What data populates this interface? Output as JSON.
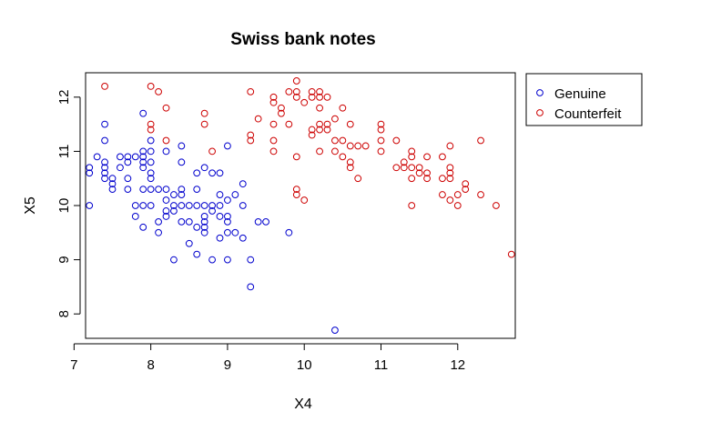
{
  "chart_data": {
    "type": "scatter",
    "title": "Swiss bank notes",
    "xlabel": "X4",
    "ylabel": "X5",
    "xlim": [
      7.15,
      12.75
    ],
    "ylim": [
      7.55,
      12.45
    ],
    "xticks": [
      7,
      8,
      9,
      10,
      11,
      12
    ],
    "yticks": [
      8,
      9,
      10,
      11,
      12
    ],
    "grid": false,
    "legend_position": "top-right (outside plot)",
    "series": [
      {
        "name": "Genuine",
        "color": "#0000cd",
        "marker": "open-circle",
        "points": [
          [
            7.2,
            10.7
          ],
          [
            7.2,
            10.6
          ],
          [
            7.2,
            10.0
          ],
          [
            7.3,
            10.9
          ],
          [
            7.4,
            11.5
          ],
          [
            7.4,
            11.2
          ],
          [
            7.4,
            10.8
          ],
          [
            7.4,
            10.7
          ],
          [
            7.4,
            10.6
          ],
          [
            7.4,
            10.5
          ],
          [
            7.5,
            10.5
          ],
          [
            7.5,
            10.4
          ],
          [
            7.5,
            10.3
          ],
          [
            7.6,
            10.9
          ],
          [
            7.6,
            10.7
          ],
          [
            7.7,
            10.9
          ],
          [
            7.7,
            10.8
          ],
          [
            7.7,
            10.5
          ],
          [
            7.7,
            10.3
          ],
          [
            7.8,
            10.9
          ],
          [
            7.8,
            10.0
          ],
          [
            7.8,
            9.8
          ],
          [
            7.9,
            11.7
          ],
          [
            7.9,
            11.0
          ],
          [
            7.9,
            10.9
          ],
          [
            7.9,
            10.8
          ],
          [
            7.9,
            10.7
          ],
          [
            7.9,
            10.3
          ],
          [
            7.9,
            10.0
          ],
          [
            7.9,
            9.6
          ],
          [
            8.0,
            11.2
          ],
          [
            8.0,
            11.0
          ],
          [
            8.0,
            10.8
          ],
          [
            8.0,
            10.6
          ],
          [
            8.0,
            10.5
          ],
          [
            8.0,
            10.3
          ],
          [
            8.0,
            10.0
          ],
          [
            8.1,
            10.3
          ],
          [
            8.1,
            9.7
          ],
          [
            8.1,
            9.5
          ],
          [
            8.2,
            11.0
          ],
          [
            8.2,
            10.3
          ],
          [
            8.2,
            10.1
          ],
          [
            8.2,
            9.9
          ],
          [
            8.2,
            9.8
          ],
          [
            8.3,
            10.2
          ],
          [
            8.3,
            10.0
          ],
          [
            8.3,
            9.9
          ],
          [
            8.3,
            9.0
          ],
          [
            8.4,
            11.1
          ],
          [
            8.4,
            10.8
          ],
          [
            8.4,
            10.3
          ],
          [
            8.4,
            10.2
          ],
          [
            8.4,
            10.0
          ],
          [
            8.4,
            9.7
          ],
          [
            8.5,
            9.7
          ],
          [
            8.5,
            9.3
          ],
          [
            8.5,
            10.0
          ],
          [
            8.6,
            10.6
          ],
          [
            8.6,
            10.3
          ],
          [
            8.6,
            10.0
          ],
          [
            8.6,
            9.6
          ],
          [
            8.6,
            9.1
          ],
          [
            8.7,
            10.7
          ],
          [
            8.7,
            10.0
          ],
          [
            8.7,
            9.8
          ],
          [
            8.7,
            9.6
          ],
          [
            8.7,
            9.5
          ],
          [
            8.7,
            9.7
          ],
          [
            8.8,
            10.6
          ],
          [
            8.8,
            10.0
          ],
          [
            8.8,
            9.9
          ],
          [
            8.8,
            9.0
          ],
          [
            8.9,
            10.6
          ],
          [
            8.9,
            10.2
          ],
          [
            8.9,
            9.8
          ],
          [
            8.9,
            9.4
          ],
          [
            8.9,
            10.0
          ],
          [
            9.0,
            11.1
          ],
          [
            9.0,
            10.1
          ],
          [
            9.0,
            9.8
          ],
          [
            9.0,
            9.7
          ],
          [
            9.0,
            9.5
          ],
          [
            9.0,
            9.0
          ],
          [
            9.1,
            10.2
          ],
          [
            9.1,
            9.5
          ],
          [
            9.2,
            10.4
          ],
          [
            9.2,
            10.0
          ],
          [
            9.2,
            9.4
          ],
          [
            9.3,
            9.0
          ],
          [
            9.3,
            8.5
          ],
          [
            9.4,
            9.7
          ],
          [
            9.5,
            9.7
          ],
          [
            9.8,
            9.5
          ],
          [
            10.4,
            7.7
          ]
        ]
      },
      {
        "name": "Counterfeit",
        "color": "#cd0000",
        "marker": "open-circle",
        "points": [
          [
            7.4,
            12.2
          ],
          [
            8.0,
            12.2
          ],
          [
            8.1,
            12.1
          ],
          [
            8.2,
            11.8
          ],
          [
            8.0,
            11.5
          ],
          [
            8.0,
            11.4
          ],
          [
            8.2,
            11.2
          ],
          [
            8.7,
            11.7
          ],
          [
            8.7,
            11.5
          ],
          [
            8.8,
            11.0
          ],
          [
            9.3,
            12.1
          ],
          [
            9.3,
            11.3
          ],
          [
            9.3,
            11.2
          ],
          [
            9.4,
            11.6
          ],
          [
            9.6,
            12.0
          ],
          [
            9.6,
            11.9
          ],
          [
            9.6,
            11.5
          ],
          [
            9.6,
            11.2
          ],
          [
            9.6,
            11.0
          ],
          [
            9.7,
            11.8
          ],
          [
            9.7,
            11.7
          ],
          [
            9.8,
            12.1
          ],
          [
            9.8,
            11.5
          ],
          [
            9.9,
            12.3
          ],
          [
            9.9,
            12.1
          ],
          [
            9.9,
            12.0
          ],
          [
            9.9,
            10.9
          ],
          [
            9.9,
            10.3
          ],
          [
            9.9,
            10.2
          ],
          [
            10.0,
            11.9
          ],
          [
            10.0,
            10.1
          ],
          [
            10.1,
            12.1
          ],
          [
            10.1,
            12.0
          ],
          [
            10.1,
            11.4
          ],
          [
            10.1,
            11.3
          ],
          [
            10.2,
            12.1
          ],
          [
            10.2,
            12.0
          ],
          [
            10.2,
            11.5
          ],
          [
            10.2,
            11.4
          ],
          [
            10.2,
            11.0
          ],
          [
            10.2,
            11.8
          ],
          [
            10.3,
            12.0
          ],
          [
            10.3,
            11.5
          ],
          [
            10.3,
            11.4
          ],
          [
            10.4,
            11.6
          ],
          [
            10.4,
            11.2
          ],
          [
            10.4,
            11.0
          ],
          [
            10.5,
            11.8
          ],
          [
            10.5,
            11.2
          ],
          [
            10.5,
            10.9
          ],
          [
            10.6,
            11.5
          ],
          [
            10.6,
            11.1
          ],
          [
            10.6,
            10.8
          ],
          [
            10.6,
            10.7
          ],
          [
            10.7,
            11.1
          ],
          [
            10.7,
            10.5
          ],
          [
            10.8,
            11.1
          ],
          [
            11.0,
            11.5
          ],
          [
            11.0,
            11.4
          ],
          [
            11.0,
            11.2
          ],
          [
            11.0,
            11.0
          ],
          [
            11.2,
            11.2
          ],
          [
            11.2,
            10.7
          ],
          [
            11.3,
            10.8
          ],
          [
            11.3,
            10.7
          ],
          [
            11.4,
            11.0
          ],
          [
            11.4,
            10.9
          ],
          [
            11.4,
            10.7
          ],
          [
            11.4,
            10.5
          ],
          [
            11.4,
            10.0
          ],
          [
            11.5,
            10.7
          ],
          [
            11.5,
            10.6
          ],
          [
            11.6,
            10.9
          ],
          [
            11.6,
            10.6
          ],
          [
            11.6,
            10.5
          ],
          [
            11.8,
            10.9
          ],
          [
            11.8,
            10.5
          ],
          [
            11.8,
            10.2
          ],
          [
            11.9,
            11.1
          ],
          [
            11.9,
            10.7
          ],
          [
            11.9,
            10.6
          ],
          [
            11.9,
            10.5
          ],
          [
            11.9,
            10.1
          ],
          [
            12.0,
            10.2
          ],
          [
            12.0,
            10.0
          ],
          [
            12.1,
            10.4
          ],
          [
            12.1,
            10.3
          ],
          [
            12.3,
            11.2
          ],
          [
            12.3,
            10.2
          ],
          [
            12.5,
            10.0
          ],
          [
            12.7,
            9.1
          ]
        ]
      }
    ]
  }
}
